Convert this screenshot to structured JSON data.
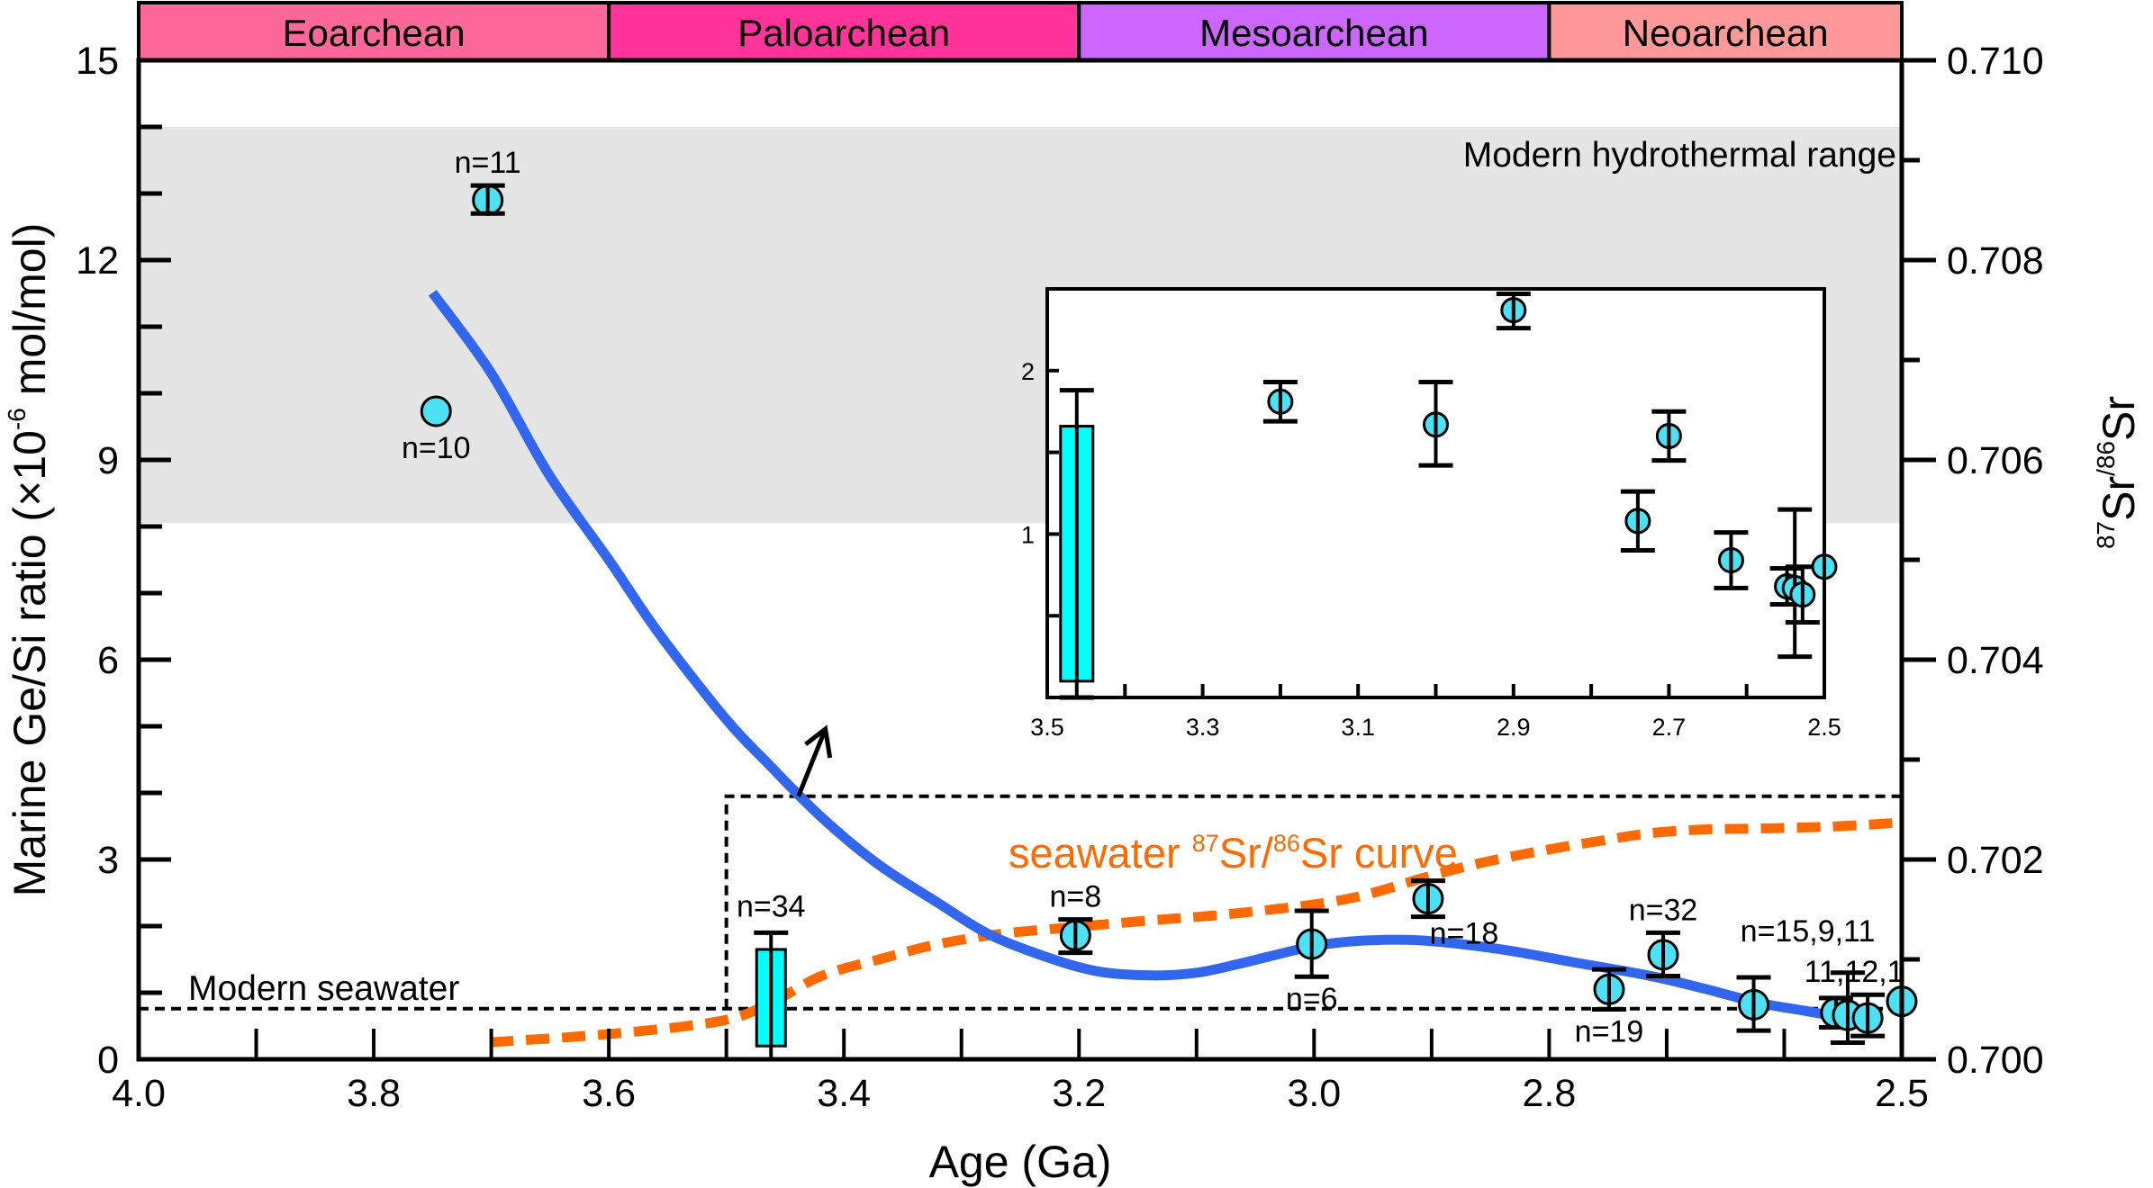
{
  "chart_data": {
    "type": "scatter",
    "title": "",
    "xlabel": "Age (Ga)",
    "ylabel": "Marine Ge/Si ratio (×10",
    "ylabel_exp": "-6",
    "ylabel_unit": " mol/mol)",
    "y2label_sup1": "87",
    "y2label_main1": "Sr",
    "y2label_sup2": "/86",
    "y2label_main2": "Sr",
    "xlim": [
      4.0,
      2.5
    ],
    "ylim": [
      0,
      15
    ],
    "y2lim": [
      0.7,
      0.71
    ],
    "x_ticks": [
      {
        "value": 4.0,
        "label": "4.0"
      },
      {
        "value": 3.8,
        "label": "3.8"
      },
      {
        "value": 3.6,
        "label": "3.6"
      },
      {
        "value": 3.4,
        "label": "3.4"
      },
      {
        "value": 3.2,
        "label": "3.2"
      },
      {
        "value": 3.0,
        "label": "3.0"
      },
      {
        "value": 2.8,
        "label": "2.8"
      },
      {
        "value": 2.5,
        "label": "2.5"
      }
    ],
    "x_minor_ticks": [
      3.9,
      3.7,
      3.5,
      3.3,
      3.1,
      2.9,
      2.7,
      2.6
    ],
    "y_ticks": [
      {
        "value": 0,
        "label": "0"
      },
      {
        "value": 3,
        "label": "3"
      },
      {
        "value": 6,
        "label": "6"
      },
      {
        "value": 9,
        "label": "9"
      },
      {
        "value": 12,
        "label": "12"
      },
      {
        "value": 15,
        "label": "15"
      }
    ],
    "y_minor_ticks": [
      1,
      2,
      4,
      5,
      7,
      8,
      10,
      11,
      13,
      14
    ],
    "y2_ticks": [
      {
        "value": 0.7,
        "label": "0.700"
      },
      {
        "value": 0.702,
        "label": "0.702"
      },
      {
        "value": 0.704,
        "label": "0.704"
      },
      {
        "value": 0.706,
        "label": "0.706"
      },
      {
        "value": 0.708,
        "label": "0.708"
      },
      {
        "value": 0.71,
        "label": "0.710"
      }
    ],
    "y2_minor_ticks": [
      0.701,
      0.703,
      0.705,
      0.707,
      0.709
    ],
    "eons": [
      {
        "name": "Eoarchean",
        "from": 4.0,
        "to": 3.6,
        "color": "#ff6699"
      },
      {
        "name": "Paloarchean",
        "from": 3.6,
        "to": 3.2,
        "color": "#ff3399"
      },
      {
        "name": "Mesoarchean",
        "from": 3.2,
        "to": 2.8,
        "color": "#cc66ff"
      },
      {
        "name": "Neoarchean",
        "from": 2.8,
        "to": 2.5,
        "color": "#ff9999"
      }
    ],
    "hydrothermal_range": {
      "label": "Modern hydrothermal range",
      "min": 8.05,
      "max": 14.0,
      "color": "#e5e5e5"
    },
    "modern_seawater": {
      "label": "Modern seawater",
      "value": 0.76
    },
    "zoom_box": {
      "x_from": 3.5,
      "x_to": 2.5,
      "y_from": 0.76,
      "y_to": 3.95
    },
    "points": [
      {
        "age": 3.703,
        "value": 12.9,
        "err_hi": 13.12,
        "err_lo": 12.7,
        "label": "n=11",
        "label_pos": "above"
      },
      {
        "age": 3.747,
        "value": 9.73,
        "err_hi": null,
        "err_lo": null,
        "label": "n=10",
        "label_pos": "below"
      },
      {
        "age": 3.203,
        "value": 1.86,
        "err_hi": 2.1,
        "err_lo": 1.6,
        "label": "n=8",
        "label_pos": "above"
      },
      {
        "age": 3.002,
        "value": 1.73,
        "err_hi": 2.23,
        "err_lo": 1.24,
        "label": "n=6",
        "label_pos": "below"
      },
      {
        "age": 2.903,
        "value": 2.41,
        "err_hi": 2.68,
        "err_lo": 2.14,
        "label": "n=18",
        "label_pos": "below-right"
      },
      {
        "age": 2.749,
        "value": 1.05,
        "err_hi": 1.35,
        "err_lo": 0.75,
        "label": "n=19",
        "label_pos": "below"
      },
      {
        "age": 2.703,
        "value": 1.57,
        "err_hi": 1.9,
        "err_lo": 1.25,
        "label": "n=32",
        "label_pos": "above"
      },
      {
        "age": 2.626,
        "value": 0.82,
        "err_hi": 1.23,
        "err_lo": 0.43,
        "label": "n=15,9,11",
        "label_pos": "above-right"
      },
      {
        "age": 2.556,
        "value": 0.7,
        "err_hi": 0.92,
        "err_lo": 0.48,
        "label": "",
        "label_pos": ""
      },
      {
        "age": 2.546,
        "value": 0.66,
        "err_hi": 1.3,
        "err_lo": 0.25,
        "label": "",
        "label_pos": ""
      },
      {
        "age": 2.529,
        "value": 0.62,
        "err_hi": 0.97,
        "err_lo": 0.35,
        "label": "11,12,1",
        "label_pos": "above"
      },
      {
        "age": 2.5,
        "value": 0.87,
        "err_hi": null,
        "err_lo": null,
        "label": "",
        "label_pos": ""
      }
    ],
    "bar": {
      "age": 3.462,
      "top": 1.65,
      "bottom": 0.2,
      "err_hi": 1.9,
      "err_lo": 0.0,
      "label": "n=34"
    },
    "gesi_curve": {
      "color": "#3366ee",
      "x": [
        3.75,
        3.7,
        3.651,
        3.6,
        3.558,
        3.5,
        3.464,
        3.42,
        3.371,
        3.32,
        3.277,
        3.23,
        3.184,
        3.137,
        3.1,
        3.067,
        3.03,
        2.997,
        2.96,
        2.915,
        2.875,
        2.833,
        2.78,
        2.716,
        2.67,
        2.622,
        2.58,
        2.53
      ],
      "y": [
        11.51,
        10.3,
        8.78,
        7.5,
        6.41,
        5.1,
        4.43,
        3.65,
        2.93,
        2.35,
        1.88,
        1.55,
        1.32,
        1.26,
        1.3,
        1.42,
        1.58,
        1.71,
        1.78,
        1.79,
        1.73,
        1.63,
        1.46,
        1.26,
        1.07,
        0.85,
        0.72,
        0.56
      ]
    },
    "sr_curve": {
      "label_pre": "seawater ",
      "label_sup1": "87",
      "label_mid": "Sr/",
      "label_sup2": "86",
      "label_post": "Sr curve",
      "color": "#ff6a00",
      "x": [
        3.701,
        3.593,
        3.502,
        3.46,
        3.418,
        3.37,
        3.325,
        3.27,
        3.208,
        3.14,
        3.067,
        2.974,
        2.903,
        2.86,
        2.81,
        2.76,
        2.716,
        2.67,
        2.622,
        2.56,
        2.5
      ],
      "y": [
        0.70017,
        0.70026,
        0.70039,
        0.70058,
        0.70084,
        0.701,
        0.70114,
        0.70125,
        0.70132,
        0.70139,
        0.70146,
        0.7016,
        0.70183,
        0.70196,
        0.70208,
        0.70218,
        0.70226,
        0.7023,
        0.70231,
        0.70233,
        0.70237
      ]
    },
    "inset": {
      "xlim": [
        3.5,
        2.5
      ],
      "ylim": [
        0,
        2.5
      ],
      "x_ticks": [
        {
          "value": 3.5,
          "label": "3.5"
        },
        {
          "value": 3.3,
          "label": "3.3"
        },
        {
          "value": 3.1,
          "label": "3.1"
        },
        {
          "value": 2.9,
          "label": "2.9"
        },
        {
          "value": 2.7,
          "label": "2.7"
        },
        {
          "value": 2.5,
          "label": "2.5"
        }
      ],
      "x_minor_ticks": [
        3.4,
        3.2,
        3.0,
        2.8,
        2.6
      ],
      "y_ticks": [
        {
          "value": 1,
          "label": "1"
        },
        {
          "value": 2,
          "label": "2"
        }
      ],
      "y_minor_ticks": [
        0.5,
        1.5
      ],
      "bar": {
        "age": 3.462,
        "top": 1.66,
        "bottom": 0.1,
        "err_hi": 1.88,
        "err_lo": 0.0
      },
      "points": [
        {
          "age": 3.2,
          "value": 1.81,
          "err_hi": 1.93,
          "err_lo": 1.69
        },
        {
          "age": 3.0,
          "value": 1.67,
          "err_hi": 1.93,
          "err_lo": 1.42
        },
        {
          "age": 2.9,
          "value": 2.37,
          "err_hi": 2.47,
          "err_lo": 2.26
        },
        {
          "age": 2.74,
          "value": 1.08,
          "err_hi": 1.26,
          "err_lo": 0.9
        },
        {
          "age": 2.7,
          "value": 1.6,
          "err_hi": 1.75,
          "err_lo": 1.45
        },
        {
          "age": 2.62,
          "value": 0.84,
          "err_hi": 1.01,
          "err_lo": 0.67
        },
        {
          "age": 2.548,
          "value": 0.68,
          "err_hi": 0.79,
          "err_lo": 0.57
        },
        {
          "age": 2.538,
          "value": 0.67,
          "err_hi": 1.15,
          "err_lo": 0.25
        },
        {
          "age": 2.528,
          "value": 0.63,
          "err_hi": 0.8,
          "err_lo": 0.46
        },
        {
          "age": 2.5,
          "value": 0.8,
          "err_hi": null,
          "err_lo": null
        }
      ]
    },
    "marker_color": "#4de1f5",
    "bar_color": "#00ffff"
  }
}
